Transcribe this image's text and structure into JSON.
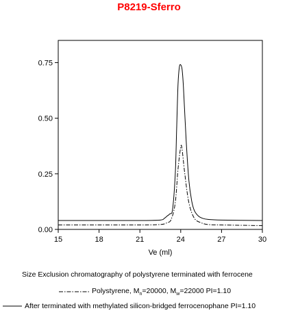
{
  "chart_data": {
    "type": "line",
    "title": "P8219-Sferro",
    "xlabel": "Ve (ml)",
    "ylabel": "",
    "xlim": [
      15,
      30
    ],
    "ylim": [
      0,
      0.85
    ],
    "xticks": [
      "15",
      "18",
      "21",
      "24",
      "27",
      "30"
    ],
    "yticks": [
      "0.00",
      "0.25",
      "0.50",
      "0.75"
    ],
    "caption": "Size Exclusion chromatography of polystyrene terminated with ferrocene",
    "series": [
      {
        "name_parts": [
          "Polystyrene, M",
          "n",
          "=20000, M",
          "w",
          "=22000 PI=1.10"
        ],
        "style": "dash-dot",
        "baseline": 0.02,
        "x": [
          15,
          18,
          21,
          22.5,
          23,
          23.3,
          23.6,
          23.8,
          24.0,
          24.1,
          24.3,
          24.6,
          25.0,
          25.5,
          26,
          27,
          30
        ],
        "y": [
          0.02,
          0.02,
          0.02,
          0.022,
          0.03,
          0.045,
          0.12,
          0.27,
          0.37,
          0.36,
          0.25,
          0.12,
          0.05,
          0.03,
          0.022,
          0.02,
          0.017
        ]
      },
      {
        "name": "After terminated with methylated silicon-bridged ferrocenophane  PI=1.10",
        "style": "solid",
        "baseline": 0.04,
        "x": [
          15,
          18,
          21,
          22.5,
          22.8,
          23.0,
          23.2,
          23.4,
          23.6,
          23.7,
          23.8,
          23.9,
          24.0,
          24.1,
          24.2,
          24.4,
          24.6,
          24.8,
          25.0,
          25.3,
          25.6,
          26,
          27,
          30
        ],
        "y": [
          0.04,
          0.04,
          0.04,
          0.042,
          0.05,
          0.06,
          0.07,
          0.09,
          0.25,
          0.45,
          0.65,
          0.73,
          0.74,
          0.72,
          0.64,
          0.4,
          0.22,
          0.13,
          0.085,
          0.06,
          0.05,
          0.045,
          0.042,
          0.04
        ]
      }
    ]
  }
}
